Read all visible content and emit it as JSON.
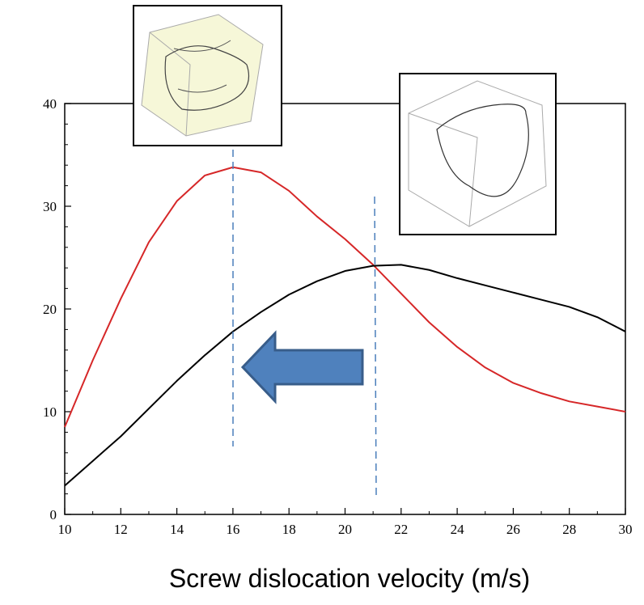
{
  "chart_data": {
    "type": "line",
    "x_label": "Screw dislocation velocity (m/s)",
    "x": [
      10,
      11,
      12,
      13,
      14,
      15,
      16,
      17,
      18,
      19,
      20,
      21,
      22,
      23,
      24,
      25,
      26,
      27,
      28,
      29,
      30
    ],
    "series": [
      {
        "color": "#d62728",
        "values": [
          8.5,
          15,
          21,
          26.5,
          30.5,
          33,
          33.8,
          33.3,
          31.5,
          29,
          26.8,
          24.3,
          21.5,
          18.7,
          16.3,
          14.3,
          12.8,
          11.8,
          11,
          10.5,
          10.0
        ]
      },
      {
        "color": "#000000",
        "values": [
          2.8,
          5.2,
          7.6,
          10.3,
          13,
          15.5,
          17.8,
          19.7,
          21.4,
          22.7,
          23.7,
          24.2,
          24.3,
          23.8,
          23.0,
          22.3,
          21.6,
          20.9,
          20.2,
          19.2,
          17.8
        ]
      }
    ],
    "xlim": [
      10,
      30
    ],
    "xticks": [
      10,
      12,
      14,
      16,
      18,
      20,
      22,
      24,
      26,
      28,
      30
    ],
    "ylim": [
      0,
      40
    ],
    "yticks": [
      0,
      10,
      20,
      30,
      40
    ]
  }
}
